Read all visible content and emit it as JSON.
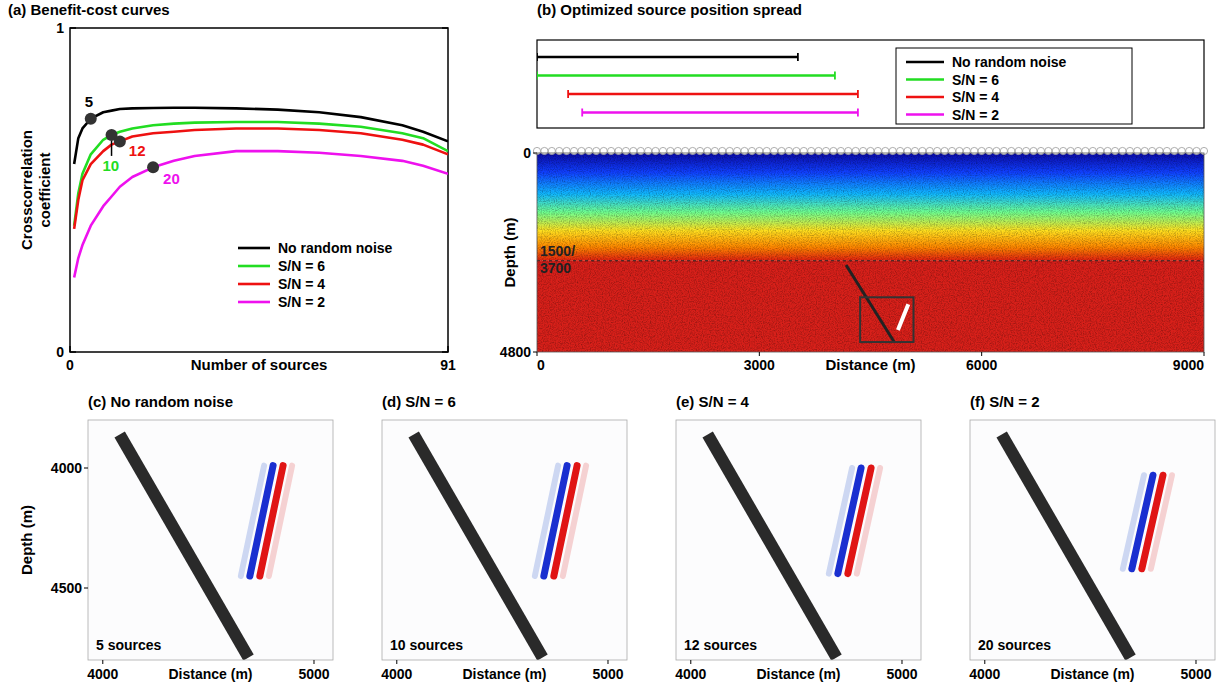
{
  "chart_data": [
    {
      "type": "line",
      "title": "(a) Benefit-cost curves",
      "x_label": "Number of sources",
      "y_label": "Crosscorrelation coefficient",
      "x": [
        1,
        2,
        3,
        5,
        8,
        10,
        12,
        15,
        20,
        25,
        30,
        40,
        50,
        60,
        70,
        80,
        85,
        91
      ],
      "xlim": [
        0,
        91
      ],
      "ylim": [
        0,
        1
      ],
      "xticks": [
        0,
        91
      ],
      "yticks": [
        0,
        1
      ],
      "legend": "bottom-right",
      "series": [
        {
          "name": "No random noise",
          "color": "#000000",
          "values": [
            0.58,
            0.66,
            0.69,
            0.72,
            0.74,
            0.745,
            0.75,
            0.752,
            0.753,
            0.754,
            0.754,
            0.752,
            0.748,
            0.74,
            0.725,
            0.7,
            0.68,
            0.65
          ]
        },
        {
          "name": "S/N = 6",
          "color": "#22dd22",
          "values": [
            0.39,
            0.49,
            0.55,
            0.61,
            0.655,
            0.67,
            0.68,
            0.69,
            0.7,
            0.705,
            0.708,
            0.71,
            0.71,
            0.705,
            0.695,
            0.675,
            0.66,
            0.62
          ]
        },
        {
          "name": "S/N = 4",
          "color": "#ee1111",
          "values": [
            0.38,
            0.47,
            0.53,
            0.58,
            0.62,
            0.64,
            0.65,
            0.665,
            0.675,
            0.68,
            0.685,
            0.69,
            0.69,
            0.685,
            0.675,
            0.655,
            0.64,
            0.61
          ]
        },
        {
          "name": "S/N = 2",
          "color": "#ee11ee",
          "values": [
            0.23,
            0.29,
            0.33,
            0.39,
            0.45,
            0.48,
            0.51,
            0.54,
            0.57,
            0.59,
            0.605,
            0.62,
            0.62,
            0.615,
            0.605,
            0.59,
            0.575,
            0.55
          ]
        }
      ],
      "highlights": [
        {
          "x": 5,
          "y": 0.72,
          "label": "5",
          "color": "#000000"
        },
        {
          "x": 10,
          "y": 0.67,
          "label": "10",
          "color": "#22dd22"
        },
        {
          "x": 12,
          "y": 0.65,
          "label": "12",
          "color": "#ee1111"
        },
        {
          "x": 20,
          "y": 0.57,
          "label": "20",
          "color": "#ee11ee"
        }
      ]
    },
    {
      "type": "range",
      "title": "(b) Optimized source position spread",
      "xlim": [
        0,
        9000
      ],
      "legend": "right",
      "tick_labels": false,
      "series": [
        {
          "name": "No random noise",
          "color": "#000000",
          "values": [
            0,
            3520
          ]
        },
        {
          "name": "S/N = 6",
          "color": "#22dd22",
          "values": [
            0,
            4020
          ]
        },
        {
          "name": "S/N = 4",
          "color": "#ee1111",
          "values": [
            420,
            4330
          ]
        },
        {
          "name": "S/N = 2",
          "color": "#ee11ee",
          "values": [
            610,
            4330
          ]
        }
      ]
    },
    {
      "type": "image",
      "x_label": "Distance (m)",
      "y_label": "Depth (m)",
      "xlim": [
        0,
        9000
      ],
      "ylim": [
        0,
        4800
      ],
      "xticks": [
        0,
        3000,
        6000,
        9000
      ],
      "yticks": [
        0,
        4800
      ],
      "interface_depth": 2600,
      "interface_label": "1500/3700",
      "receivers_x": [
        0,
        100,
        200,
        300,
        400,
        500,
        600,
        700,
        800,
        900,
        1000,
        1100,
        1200,
        1300,
        1400,
        1500,
        1600,
        1700,
        1800,
        1900,
        2000,
        2100,
        2200,
        2300,
        2400,
        2500,
        2600,
        2700,
        2800,
        2900,
        3000,
        3100,
        3200,
        3300,
        3400,
        3500,
        3600,
        3700,
        3800,
        3900,
        4000,
        4100,
        4200,
        4300,
        4400,
        4500,
        4600,
        4700,
        4800,
        4900,
        5000,
        5100,
        5200,
        5300,
        5400,
        5500,
        5600,
        5700,
        5800,
        5900,
        6000,
        6100,
        6200,
        6300,
        6400,
        6500,
        6600,
        6700,
        6800,
        6900,
        7000,
        7100,
        7200,
        7300,
        7400,
        7500,
        7600,
        7700,
        7800,
        7900,
        8000,
        8100,
        8200,
        8300,
        8400,
        8500,
        8600,
        8700,
        8800,
        8900,
        9000
      ],
      "fault": {
        "x": [
          4170,
          4820
        ],
        "y": [
          2700,
          4560
        ]
      },
      "box": {
        "x": [
          4360,
          5080
        ],
        "y": [
          3480,
          4560
        ]
      },
      "target": {
        "x": [
          4870,
          5010
        ],
        "y": [
          4270,
          3650
        ]
      }
    },
    {
      "type": "image",
      "title": "(c) No random noise",
      "x_label": "Distance (m)",
      "y_label": "Depth (m)",
      "xlim": [
        3930,
        5090
      ],
      "ylim": [
        3800,
        4800
      ],
      "xticks": [
        4000,
        5000
      ],
      "yticks": [
        4000,
        4500
      ],
      "annotation": "5 sources",
      "fault": {
        "x": [
          4080,
          4690
        ],
        "y": [
          3860,
          4790
        ]
      },
      "reflector": {
        "x": [
          4720,
          4830
        ],
        "y": [
          4450,
          3990
        ]
      }
    },
    {
      "type": "image",
      "title": "(d) S/N = 6",
      "x_label": "Distance (m)",
      "tick_labels": "x",
      "xlim": [
        3930,
        5090
      ],
      "ylim": [
        3800,
        4800
      ],
      "xticks": [
        4000,
        5000
      ],
      "annotation": "10 sources",
      "fault": {
        "x": [
          4080,
          4690
        ],
        "y": [
          3860,
          4790
        ]
      },
      "reflector": {
        "x": [
          4720,
          4830
        ],
        "y": [
          4450,
          3990
        ]
      }
    },
    {
      "type": "image",
      "title": "(e) S/N = 4",
      "x_label": "Distance (m)",
      "tick_labels": "x",
      "xlim": [
        3930,
        5090
      ],
      "ylim": [
        3800,
        4800
      ],
      "xticks": [
        4000,
        5000
      ],
      "annotation": "12 sources",
      "fault": {
        "x": [
          4080,
          4690
        ],
        "y": [
          3860,
          4790
        ]
      },
      "reflector": {
        "x": [
          4720,
          4830
        ],
        "y": [
          4440,
          4000
        ]
      }
    },
    {
      "type": "image",
      "title": "(f) S/N = 2",
      "x_label": "Distance (m)",
      "tick_labels": "x",
      "xlim": [
        3930,
        5090
      ],
      "ylim": [
        3800,
        4800
      ],
      "xticks": [
        4000,
        5000
      ],
      "annotation": "20 sources",
      "fault": {
        "x": [
          4080,
          4690
        ],
        "y": [
          3860,
          4790
        ]
      },
      "reflector": {
        "x": [
          4720,
          4820
        ],
        "y": [
          4420,
          4030
        ]
      }
    }
  ]
}
